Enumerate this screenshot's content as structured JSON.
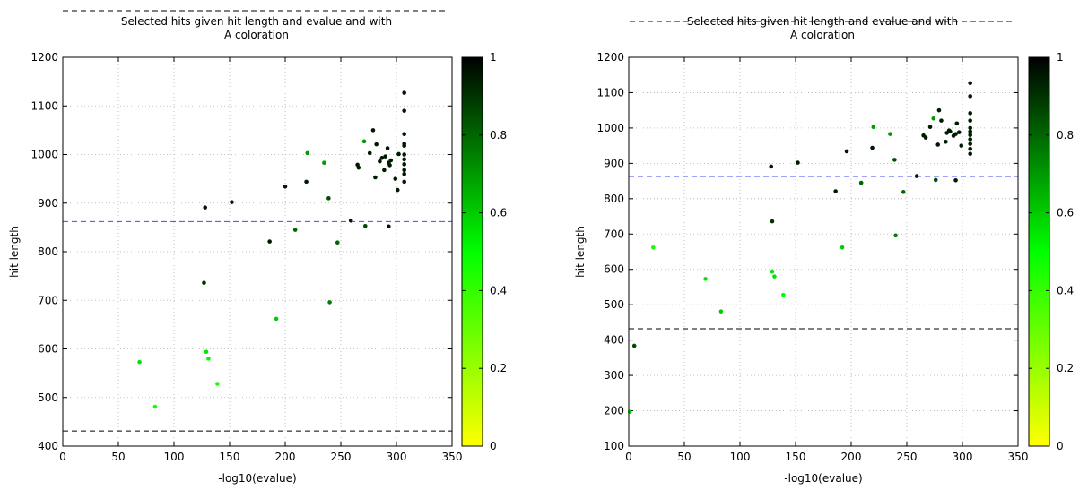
{
  "chart_data": [
    {
      "type": "scatter",
      "title": "Selected hits given hit length and evalue and with",
      "subtitle": "A coloration",
      "xlabel": "-log10(evalue)",
      "ylabel": "hit length",
      "xlim": [
        0,
        350
      ],
      "ylim": [
        400,
        1200
      ],
      "xticks": [
        0,
        50,
        100,
        150,
        200,
        250,
        300,
        350
      ],
      "yticks": [
        400,
        500,
        600,
        700,
        800,
        900,
        1000,
        1100,
        1200
      ],
      "grid": true,
      "colorbar": {
        "range": [
          0,
          1
        ],
        "ticks": [
          0,
          0.2,
          0.4,
          0.6,
          0.8,
          1
        ],
        "colors": [
          "#ffff00",
          "#00ff00",
          "#000000"
        ]
      },
      "hlines": [
        {
          "y": 862,
          "color": "#4444ff"
        },
        {
          "y": 431,
          "color": "#000000"
        }
      ],
      "points": [
        {
          "x": 69,
          "y": 573,
          "c": 0.55
        },
        {
          "x": 83,
          "y": 481,
          "c": 0.45
        },
        {
          "x": 127,
          "y": 736,
          "c": 0.9
        },
        {
          "x": 128,
          "y": 891,
          "c": 0.95
        },
        {
          "x": 129,
          "y": 594,
          "c": 0.55
        },
        {
          "x": 131,
          "y": 580,
          "c": 0.52
        },
        {
          "x": 139,
          "y": 528,
          "c": 0.45
        },
        {
          "x": 152,
          "y": 902,
          "c": 0.95
        },
        {
          "x": 186,
          "y": 821,
          "c": 0.95
        },
        {
          "x": 192,
          "y": 662,
          "c": 0.6
        },
        {
          "x": 200,
          "y": 934,
          "c": 0.95
        },
        {
          "x": 209,
          "y": 845,
          "c": 0.8
        },
        {
          "x": 219,
          "y": 944,
          "c": 0.95
        },
        {
          "x": 220,
          "y": 1003,
          "c": 0.7
        },
        {
          "x": 235,
          "y": 983,
          "c": 0.7
        },
        {
          "x": 239,
          "y": 910,
          "c": 0.85
        },
        {
          "x": 240,
          "y": 696,
          "c": 0.75
        },
        {
          "x": 247,
          "y": 819,
          "c": 0.8
        },
        {
          "x": 259,
          "y": 864,
          "c": 0.95
        },
        {
          "x": 265,
          "y": 979,
          "c": 0.95
        },
        {
          "x": 266,
          "y": 973,
          "c": 0.95
        },
        {
          "x": 271,
          "y": 1027,
          "c": 0.7
        },
        {
          "x": 272,
          "y": 853,
          "c": 0.85
        },
        {
          "x": 276,
          "y": 1003,
          "c": 0.95
        },
        {
          "x": 279,
          "y": 1050,
          "c": 0.95
        },
        {
          "x": 281,
          "y": 953,
          "c": 0.95
        },
        {
          "x": 282,
          "y": 1021,
          "c": 0.95
        },
        {
          "x": 285,
          "y": 986,
          "c": 0.95
        },
        {
          "x": 287,
          "y": 993,
          "c": 0.95
        },
        {
          "x": 289,
          "y": 968,
          "c": 0.95
        },
        {
          "x": 290,
          "y": 996,
          "c": 0.95
        },
        {
          "x": 292,
          "y": 1013,
          "c": 0.95
        },
        {
          "x": 293,
          "y": 852,
          "c": 0.95
        },
        {
          "x": 293,
          "y": 983,
          "c": 0.95
        },
        {
          "x": 294,
          "y": 978,
          "c": 0.95
        },
        {
          "x": 295,
          "y": 988,
          "c": 0.95
        },
        {
          "x": 299,
          "y": 950,
          "c": 0.95
        },
        {
          "x": 301,
          "y": 927,
          "c": 0.95
        },
        {
          "x": 302,
          "y": 1001,
          "c": 0.95
        },
        {
          "x": 307,
          "y": 1127,
          "c": 0.95
        },
        {
          "x": 307,
          "y": 1090,
          "c": 0.95
        },
        {
          "x": 307,
          "y": 1042,
          "c": 0.95
        },
        {
          "x": 307,
          "y": 1022,
          "c": 0.95
        },
        {
          "x": 307,
          "y": 1018,
          "c": 0.95
        },
        {
          "x": 307,
          "y": 1000,
          "c": 0.95
        },
        {
          "x": 307,
          "y": 990,
          "c": 0.95
        },
        {
          "x": 307,
          "y": 980,
          "c": 0.95
        },
        {
          "x": 307,
          "y": 968,
          "c": 0.95
        },
        {
          "x": 307,
          "y": 960,
          "c": 0.95
        },
        {
          "x": 307,
          "y": 944,
          "c": 0.95
        }
      ]
    },
    {
      "type": "scatter",
      "title": "Selected hits given hit length and evalue and with",
      "subtitle": "A coloration",
      "xlabel": "-log10(evalue)",
      "ylabel": "hit length",
      "xlim": [
        0,
        350
      ],
      "ylim": [
        100,
        1200
      ],
      "xticks": [
        0,
        50,
        100,
        150,
        200,
        250,
        300,
        350
      ],
      "yticks": [
        100,
        200,
        300,
        400,
        500,
        600,
        700,
        800,
        900,
        1000,
        1100,
        1200
      ],
      "grid": true,
      "colorbar": {
        "range": [
          0,
          1
        ],
        "ticks": [
          0,
          0.2,
          0.4,
          0.6,
          0.8,
          1
        ],
        "colors": [
          "#ffff00",
          "#00ff00",
          "#000000"
        ]
      },
      "hlines": [
        {
          "y": 863,
          "color": "#4444ff"
        },
        {
          "y": 432,
          "color": "#000000"
        }
      ],
      "points": [
        {
          "x": 1,
          "y": 197,
          "c": 0.55
        },
        {
          "x": 5,
          "y": 384,
          "c": 0.85
        },
        {
          "x": 22,
          "y": 662,
          "c": 0.45
        },
        {
          "x": 69,
          "y": 573,
          "c": 0.55
        },
        {
          "x": 83,
          "y": 481,
          "c": 0.6
        },
        {
          "x": 128,
          "y": 891,
          "c": 0.95
        },
        {
          "x": 129,
          "y": 594,
          "c": 0.55
        },
        {
          "x": 129,
          "y": 736,
          "c": 0.9
        },
        {
          "x": 131,
          "y": 580,
          "c": 0.55
        },
        {
          "x": 139,
          "y": 528,
          "c": 0.5
        },
        {
          "x": 152,
          "y": 902,
          "c": 0.95
        },
        {
          "x": 186,
          "y": 821,
          "c": 0.95
        },
        {
          "x": 192,
          "y": 662,
          "c": 0.6
        },
        {
          "x": 196,
          "y": 934,
          "c": 0.95
        },
        {
          "x": 209,
          "y": 845,
          "c": 0.8
        },
        {
          "x": 219,
          "y": 944,
          "c": 0.95
        },
        {
          "x": 220,
          "y": 1003,
          "c": 0.7
        },
        {
          "x": 235,
          "y": 983,
          "c": 0.7
        },
        {
          "x": 239,
          "y": 910,
          "c": 0.85
        },
        {
          "x": 240,
          "y": 696,
          "c": 0.75
        },
        {
          "x": 247,
          "y": 819,
          "c": 0.8
        },
        {
          "x": 259,
          "y": 864,
          "c": 0.95
        },
        {
          "x": 265,
          "y": 979,
          "c": 0.95
        },
        {
          "x": 267,
          "y": 973,
          "c": 0.95
        },
        {
          "x": 271,
          "y": 1003,
          "c": 0.95
        },
        {
          "x": 274,
          "y": 1027,
          "c": 0.7
        },
        {
          "x": 276,
          "y": 853,
          "c": 0.85
        },
        {
          "x": 278,
          "y": 953,
          "c": 0.95
        },
        {
          "x": 279,
          "y": 1050,
          "c": 0.95
        },
        {
          "x": 281,
          "y": 1021,
          "c": 0.95
        },
        {
          "x": 285,
          "y": 961,
          "c": 0.95
        },
        {
          "x": 286,
          "y": 986,
          "c": 0.95
        },
        {
          "x": 288,
          "y": 993,
          "c": 0.95
        },
        {
          "x": 289,
          "y": 990,
          "c": 0.95
        },
        {
          "x": 292,
          "y": 978,
          "c": 0.95
        },
        {
          "x": 294,
          "y": 852,
          "c": 0.95
        },
        {
          "x": 294,
          "y": 983,
          "c": 0.95
        },
        {
          "x": 295,
          "y": 1013,
          "c": 0.95
        },
        {
          "x": 297,
          "y": 988,
          "c": 0.95
        },
        {
          "x": 299,
          "y": 950,
          "c": 0.95
        },
        {
          "x": 307,
          "y": 1127,
          "c": 0.95
        },
        {
          "x": 307,
          "y": 1090,
          "c": 0.95
        },
        {
          "x": 307,
          "y": 1042,
          "c": 0.95
        },
        {
          "x": 307,
          "y": 1021,
          "c": 0.95
        },
        {
          "x": 307,
          "y": 1000,
          "c": 0.95
        },
        {
          "x": 307,
          "y": 990,
          "c": 0.95
        },
        {
          "x": 307,
          "y": 980,
          "c": 0.95
        },
        {
          "x": 307,
          "y": 968,
          "c": 0.95
        },
        {
          "x": 307,
          "y": 955,
          "c": 0.95
        },
        {
          "x": 307,
          "y": 941,
          "c": 0.95
        },
        {
          "x": 307,
          "y": 927,
          "c": 0.95
        }
      ]
    }
  ]
}
